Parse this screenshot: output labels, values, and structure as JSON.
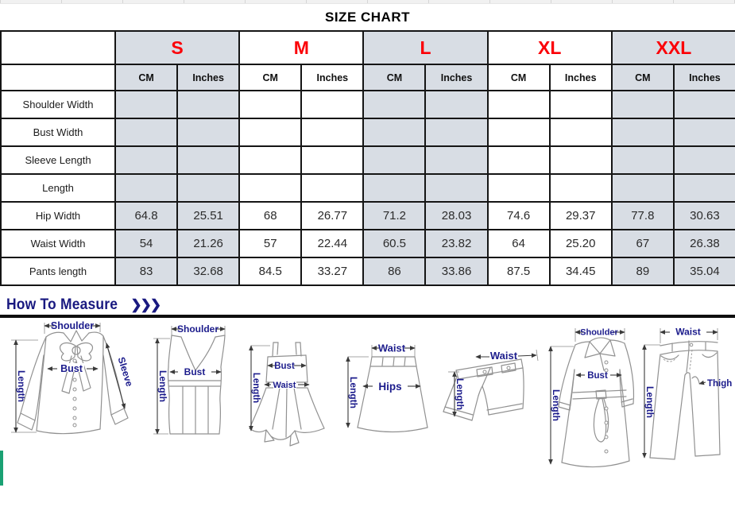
{
  "title": "SIZE CHART",
  "table": {
    "sizes": [
      "S",
      "M",
      "L",
      "XL",
      "XXL"
    ],
    "unit_headers": [
      "CM",
      "Inches"
    ],
    "rows": [
      {
        "label": "Shoulder Width",
        "values": [
          "",
          "",
          "",
          "",
          "",
          "",
          "",
          "",
          "",
          ""
        ]
      },
      {
        "label": "Bust Width",
        "values": [
          "",
          "",
          "",
          "",
          "",
          "",
          "",
          "",
          "",
          ""
        ]
      },
      {
        "label": "Sleeve Length",
        "values": [
          "",
          "",
          "",
          "",
          "",
          "",
          "",
          "",
          "",
          ""
        ]
      },
      {
        "label": "Length",
        "values": [
          "",
          "",
          "",
          "",
          "",
          "",
          "",
          "",
          "",
          ""
        ]
      },
      {
        "label": "Hip Width",
        "values": [
          "64.8",
          "25.51",
          "68",
          "26.77",
          "71.2",
          "28.03",
          "74.6",
          "29.37",
          "77.8",
          "30.63"
        ]
      },
      {
        "label": "Waist Width",
        "values": [
          "54",
          "21.26",
          "57",
          "22.44",
          "60.5",
          "23.82",
          "64",
          "25.20",
          "67",
          "26.38"
        ]
      },
      {
        "label": "Pants length",
        "values": [
          "83",
          "32.68",
          "84.5",
          "33.27",
          "86",
          "33.86",
          "87.5",
          "34.45",
          "89",
          "35.04"
        ]
      }
    ]
  },
  "measure": {
    "heading": "How To Measure",
    "chevrons": "❯❯❯",
    "garments": [
      {
        "name": "blouse",
        "labels": [
          "Shoulder",
          "Length",
          "Bust",
          "Sleeve"
        ]
      },
      {
        "name": "tank-top",
        "labels": [
          "Shoulder",
          "Length",
          "Bust"
        ]
      },
      {
        "name": "dress",
        "labels": [
          "Bust",
          "Waist",
          "Length"
        ]
      },
      {
        "name": "skirt",
        "labels": [
          "Waist",
          "Length",
          "Hips"
        ]
      },
      {
        "name": "shorts",
        "labels": [
          "Waist",
          "Length"
        ]
      },
      {
        "name": "coat",
        "labels": [
          "Shoulder",
          "Length",
          "Bust"
        ]
      },
      {
        "name": "pants",
        "labels": [
          "Waist",
          "Length",
          "Thigh"
        ]
      }
    ]
  },
  "colors": {
    "size_header_red": "#fb0007",
    "shaded_column": "#d8dde4",
    "label_navy": "#1c1c8c",
    "heading_navy": "#191980",
    "accent_green": "#1aa173",
    "line_grey": "#919191"
  }
}
